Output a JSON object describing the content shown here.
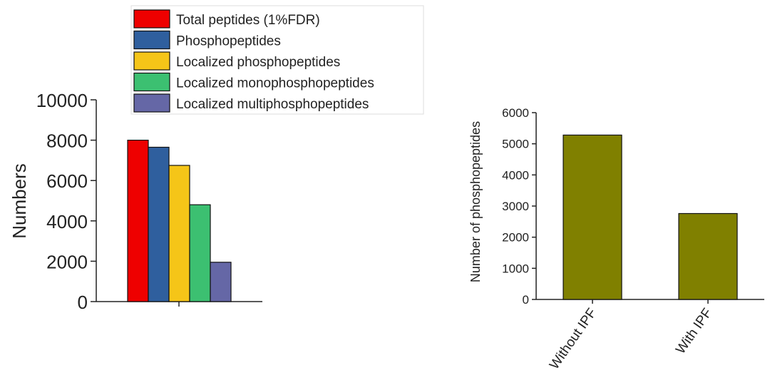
{
  "chart_data": [
    {
      "type": "bar",
      "title": "",
      "xlabel": "",
      "ylabel": "Numbers",
      "ylim": [
        0,
        10000
      ],
      "yticks": [
        0,
        2000,
        4000,
        6000,
        8000,
        10000
      ],
      "grid": false,
      "legend_position": "top",
      "categories": [
        ""
      ],
      "series": [
        {
          "name": "Total peptides (1%FDR)",
          "values": [
            8000
          ],
          "color": "#ee0000"
        },
        {
          "name": "Phosphopeptides",
          "values": [
            7650
          ],
          "color": "#2f5f9e"
        },
        {
          "name": "Localized phosphopeptides",
          "values": [
            6750
          ],
          "color": "#f5c518"
        },
        {
          "name": "Localized monophosphopeptides",
          "values": [
            4800
          ],
          "color": "#3cc071"
        },
        {
          "name": "Localized multiphosphopeptides",
          "values": [
            1950
          ],
          "color": "#6567a6"
        }
      ]
    },
    {
      "type": "bar",
      "title": "",
      "xlabel": "",
      "ylabel": "Number of phosphopeptides",
      "ylim": [
        0,
        6000
      ],
      "yticks": [
        0,
        1000,
        2000,
        3000,
        4000,
        5000,
        6000
      ],
      "grid": false,
      "categories": [
        "Without IPF",
        "With IPF"
      ],
      "values": [
        5280,
        2760
      ],
      "color": "#808000"
    }
  ]
}
